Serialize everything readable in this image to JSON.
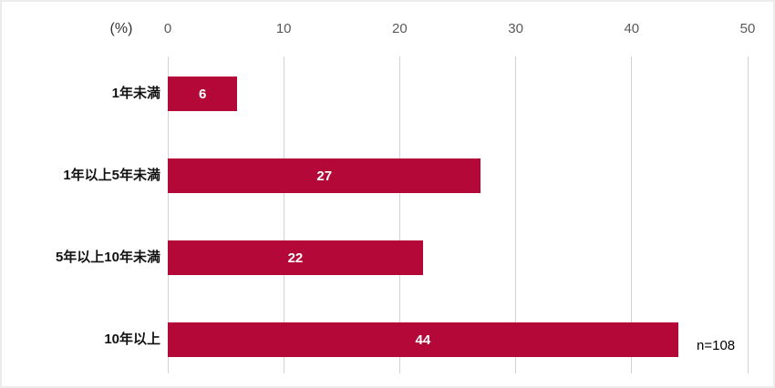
{
  "chart_data": {
    "type": "bar",
    "orientation": "horizontal",
    "title": "",
    "xlabel": "(%)",
    "ylabel": "",
    "categories": [
      "1年未満",
      "1年以上5年未満",
      "5年以上10年未満",
      "10年以上"
    ],
    "values": [
      6,
      27,
      22,
      44
    ],
    "value_labels": [
      "6",
      "27",
      "22",
      "44"
    ],
    "xlim": [
      0,
      50
    ],
    "xticks": [
      0,
      10,
      20,
      30,
      40,
      50
    ],
    "grid": true,
    "legend": false,
    "annotation": "n=108"
  },
  "style": {
    "bar_color": "#B30838",
    "value_label_color": "#FFFFFF",
    "gridline_color": "#D2D2D2",
    "tick_label_color": "#595959",
    "category_label_color": "#111111",
    "unit_label_color": "#333333",
    "background_color": "#FFFFFF",
    "frame_border_color": "#ECECEC"
  }
}
